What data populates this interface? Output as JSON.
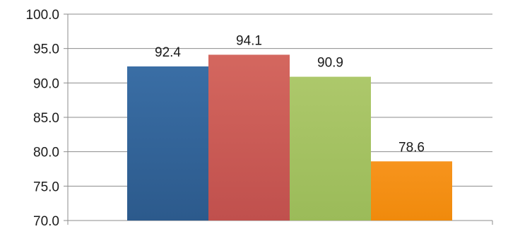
{
  "chart_data": {
    "type": "bar",
    "categories": [
      "",
      "",
      "",
      ""
    ],
    "values": [
      92.4,
      94.1,
      90.9,
      78.6
    ],
    "value_labels": [
      "92.4",
      "94.1",
      "90.9",
      "78.6"
    ],
    "title": "",
    "xlabel": "",
    "ylabel": "",
    "ylim": [
      70.0,
      100.0
    ],
    "yticks": [
      70.0,
      75.0,
      80.0,
      85.0,
      90.0,
      95.0,
      100.0
    ],
    "ytick_labels": [
      "70.0",
      "75.0",
      "80.0",
      "85.0",
      "90.0",
      "95.0",
      "100.0"
    ],
    "grid": true,
    "legend": "none",
    "colors": [
      "#2c5a8c",
      "#c0504d",
      "#9bbb59",
      "#f08a0c"
    ],
    "gradient_light": [
      "#3a6ea5",
      "#d4675f",
      "#adc86b",
      "#f7941d"
    ],
    "gridline_color": "#8c8c8c"
  }
}
